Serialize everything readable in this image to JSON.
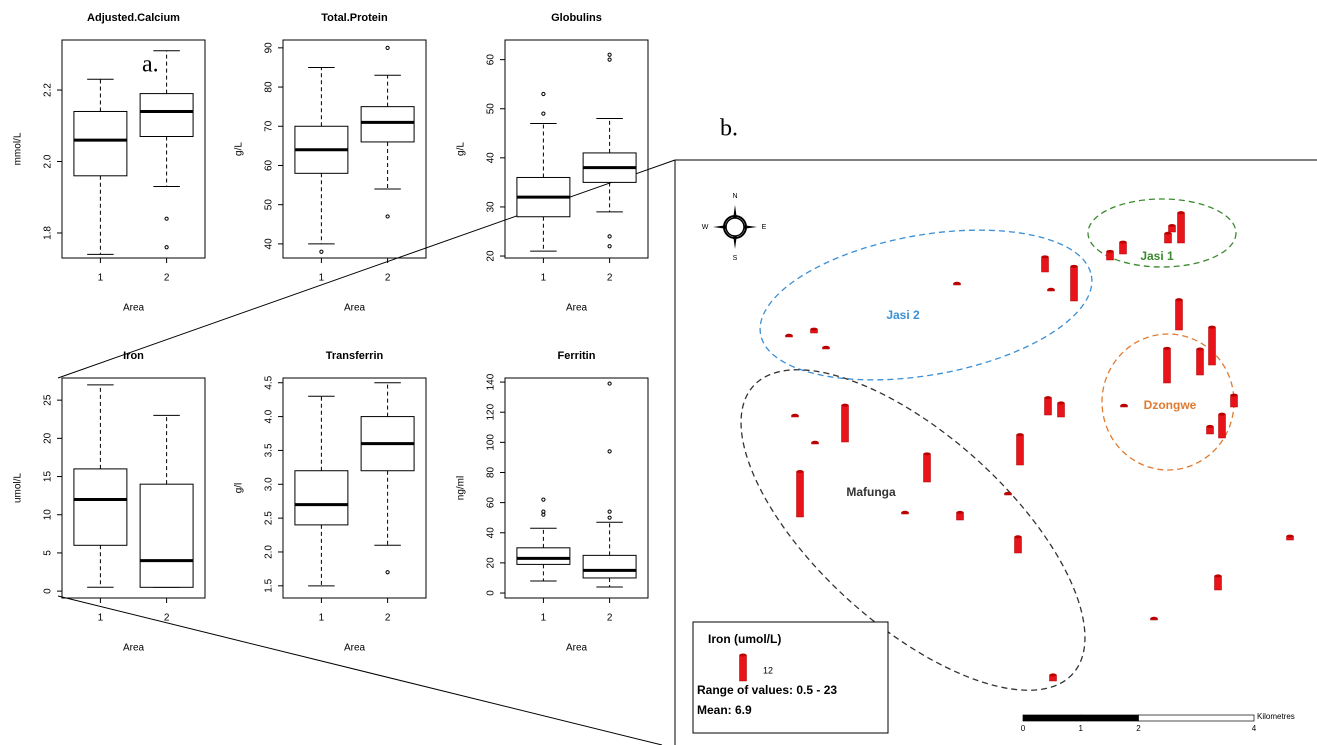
{
  "panel_labels": [
    "a.",
    "b."
  ],
  "chart_data": [
    {
      "type": "box",
      "title": "Adjusted.Calcium",
      "y_label": "mmol/L",
      "x_label": "Area",
      "categories": [
        "1",
        "2"
      ],
      "ylim": [
        1.73,
        2.34
      ],
      "yticks": [
        1.8,
        {
          "value": 2.0,
          "label": "2.0"
        },
        2.2
      ],
      "boxes": [
        {
          "whisker_low": 1.74,
          "q1": 1.96,
          "median": 2.06,
          "q3": 2.14,
          "whisker_high": 2.23,
          "outliers": []
        },
        {
          "whisker_low": 1.93,
          "q1": 2.07,
          "median": 2.14,
          "q3": 2.19,
          "whisker_high": 2.31,
          "outliers": [
            1.84,
            1.76
          ]
        }
      ]
    },
    {
      "type": "box",
      "title": "Total.Protein",
      "y_label": "g/L",
      "x_label": "Area",
      "categories": [
        "1",
        "2"
      ],
      "ylim": [
        36.4,
        92
      ],
      "yticks": [
        40,
        50,
        60,
        70,
        80,
        90
      ],
      "boxes": [
        {
          "whisker_low": 40,
          "q1": 58,
          "median": 64,
          "q3": 70,
          "whisker_high": 85,
          "outliers": [
            38
          ]
        },
        {
          "whisker_low": 54,
          "q1": 66,
          "median": 71,
          "q3": 75,
          "whisker_high": 83,
          "outliers": [
            90,
            47
          ]
        }
      ]
    },
    {
      "type": "box",
      "title": "Globulins",
      "y_label": "g/L",
      "x_label": "Area",
      "categories": [
        "1",
        "2"
      ],
      "ylim": [
        19.6,
        64
      ],
      "yticks": [
        20,
        30,
        40,
        50,
        60
      ],
      "boxes": [
        {
          "whisker_low": 21,
          "q1": 28,
          "median": 32,
          "q3": 36,
          "whisker_high": 47,
          "outliers": [
            49,
            53
          ]
        },
        {
          "whisker_low": 29,
          "q1": 35,
          "median": 38,
          "q3": 41,
          "whisker_high": 48,
          "outliers": [
            61,
            60,
            24,
            22
          ]
        }
      ]
    },
    {
      "type": "box",
      "title": "Iron",
      "y_label": "umol/L",
      "x_label": "Area",
      "categories": [
        "1",
        "2"
      ],
      "ylim": [
        -0.9,
        27.9
      ],
      "yticks": [
        0,
        5,
        10,
        15,
        20,
        25
      ],
      "boxes": [
        {
          "whisker_low": 0.5,
          "q1": 6,
          "median": 12,
          "q3": 16,
          "whisker_high": 27,
          "outliers": []
        },
        {
          "whisker_low": 0.5,
          "q1": 0.5,
          "median": 4,
          "q3": 14,
          "whisker_high": 23,
          "outliers": []
        }
      ]
    },
    {
      "type": "box",
      "title": "Transferrin",
      "y_label": "g/l",
      "x_label": "Area",
      "categories": [
        "1",
        "2"
      ],
      "ylim": [
        1.32,
        4.57
      ],
      "yticks": [
        1.5,
        {
          "value": 2.0,
          "label": "2.0"
        },
        2.5,
        {
          "value": 3.0,
          "label": "3.0"
        },
        3.5,
        {
          "value": 4.0,
          "label": "4.0"
        },
        4.5
      ],
      "boxes": [
        {
          "whisker_low": 1.5,
          "q1": 2.4,
          "median": 2.7,
          "q3": 3.2,
          "whisker_high": 4.3,
          "outliers": []
        },
        {
          "whisker_low": 2.1,
          "q1": 3.2,
          "median": 3.6,
          "q3": 4.0,
          "whisker_high": 4.5,
          "outliers": [
            1.7
          ]
        }
      ]
    },
    {
      "type": "box",
      "title": "Ferritin",
      "y_label": "ng/ml",
      "x_label": "Area",
      "categories": [
        "1",
        "2"
      ],
      "ylim": [
        -3.3,
        142.7
      ],
      "yticks": [
        0,
        20,
        40,
        60,
        80,
        100,
        120,
        140
      ],
      "boxes": [
        {
          "whisker_low": 8,
          "q1": 19,
          "median": 23,
          "q3": 30,
          "whisker_high": 43,
          "outliers": [
            62,
            54,
            52
          ]
        },
        {
          "whisker_low": 4,
          "q1": 10,
          "median": 15,
          "q3": 25,
          "whisker_high": 47,
          "outliers": [
            139,
            94,
            54,
            50
          ]
        }
      ]
    }
  ],
  "map": {
    "legend": {
      "title": "Iron (umol/L)",
      "value": 12,
      "range": "Range of values: 0.5 - 23",
      "mean": "Mean: 6.9"
    },
    "regions": [
      "Jasi 1",
      "Jasi 2",
      "Dzongwe",
      "Mafunga"
    ],
    "compass": [
      "N",
      "S",
      "W",
      "E"
    ],
    "scale": {
      "unit": "Kilometres",
      "ticks": [
        0,
        1,
        2,
        4
      ]
    },
    "values": [
      7,
      16,
      4,
      5.5,
      4.5,
      3,
      14,
      14,
      16,
      12,
      17.5,
      11,
      3.5,
      5.5,
      0.8,
      8,
      6.5,
      14,
      0.8,
      7.5,
      0.8,
      0.8,
      17,
      13,
      3.5,
      0.8,
      0.8,
      0.8,
      21,
      0.8,
      1.8,
      0.8,
      6.5,
      1.8,
      0.8,
      2.8
    ]
  }
}
